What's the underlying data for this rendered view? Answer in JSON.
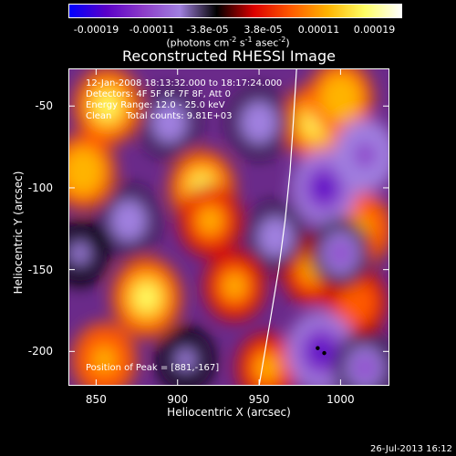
{
  "colorbar": {
    "ticks": [
      "-0.00019",
      "-0.00011",
      "-3.8e-05",
      "3.8e-05",
      "0.00011",
      "0.00019"
    ],
    "unit_prefix": "(photons cm",
    "unit_exp1": "-2",
    "unit_mid1": " s",
    "unit_exp2": "-1",
    "unit_mid2": " asec",
    "unit_exp3": "-2",
    "unit_suffix": ")"
  },
  "info": {
    "time_range": "12-Jan-2008 18:13:32.000 to 18:17:24.000",
    "detectors": "Detectors: 4F 5F 6F 7F 8F, Att 0",
    "energy": "Energy Range: 12.0 - 25.0 keV",
    "clean": "Clean     Total counts: 9.81E+03",
    "peak": "Position of Peak = [881,-167]"
  },
  "timestamp": "26-Jul-2013 16:12",
  "chart_data": {
    "type": "heatmap",
    "title": "Reconstructed RHESSI Image",
    "xlabel": "Heliocentric X (arcsec)",
    "ylabel": "Heliocentric Y (arcsec)",
    "xlim": [
      833,
      1030
    ],
    "ylim": [
      -221,
      -27
    ],
    "xticks": [
      "850",
      "900",
      "950",
      "1000"
    ],
    "xtick_values": [
      850,
      900,
      950,
      1000
    ],
    "yticks": [
      "-50",
      "-100",
      "-150",
      "-200"
    ],
    "ytick_values": [
      -50,
      -100,
      -150,
      -200
    ],
    "colorbar_range": [
      -0.00019,
      0.00019
    ],
    "colormap": [
      "#0000ff",
      "#5a00c8",
      "#8c3cc8",
      "#a080e0",
      "#000000",
      "#dc0000",
      "#ff5a00",
      "#ffb400",
      "#ffff64",
      "#ffffff"
    ],
    "limb_color": "#ffffff",
    "limb": [
      [
        950,
        -221
      ],
      [
        957,
        -180
      ],
      [
        962,
        -150
      ],
      [
        966,
        -120
      ],
      [
        969,
        -90
      ],
      [
        971,
        -60
      ],
      [
        973,
        -27
      ]
    ],
    "sources": [
      {
        "x": 857,
        "y": -50,
        "value": 0.00017
      },
      {
        "x": 842,
        "y": -90,
        "value": 0.00014
      },
      {
        "x": 881,
        "y": -167,
        "value": 0.00019
      },
      {
        "x": 855,
        "y": -205,
        "value": 0.00013
      },
      {
        "x": 915,
        "y": -100,
        "value": 0.00015
      },
      {
        "x": 920,
        "y": -120,
        "value": 0.00012
      },
      {
        "x": 935,
        "y": -160,
        "value": 0.0001
      },
      {
        "x": 985,
        "y": -60,
        "value": 0.00016
      },
      {
        "x": 1000,
        "y": -45,
        "value": 0.00014
      },
      {
        "x": 983,
        "y": -150,
        "value": 0.00011
      },
      {
        "x": 1012,
        "y": -125,
        "value": 0.00013
      },
      {
        "x": 1010,
        "y": -170,
        "value": 9e-05
      },
      {
        "x": 955,
        "y": -210,
        "value": 0.0001
      },
      {
        "x": 870,
        "y": -120,
        "value": -8e-05
      },
      {
        "x": 895,
        "y": -60,
        "value": -7e-05
      },
      {
        "x": 950,
        "y": -60,
        "value": -9e-05
      },
      {
        "x": 990,
        "y": -100,
        "value": -0.00015
      },
      {
        "x": 1015,
        "y": -80,
        "value": -0.00013
      },
      {
        "x": 988,
        "y": -200,
        "value": -0.00019
      },
      {
        "x": 1015,
        "y": -210,
        "value": -0.00011
      },
      {
        "x": 905,
        "y": -205,
        "value": -6e-05
      },
      {
        "x": 960,
        "y": -130,
        "value": -7e-05
      },
      {
        "x": 1000,
        "y": -140,
        "value": -0.0001
      },
      {
        "x": 840,
        "y": -140,
        "value": -6e-05
      }
    ]
  }
}
